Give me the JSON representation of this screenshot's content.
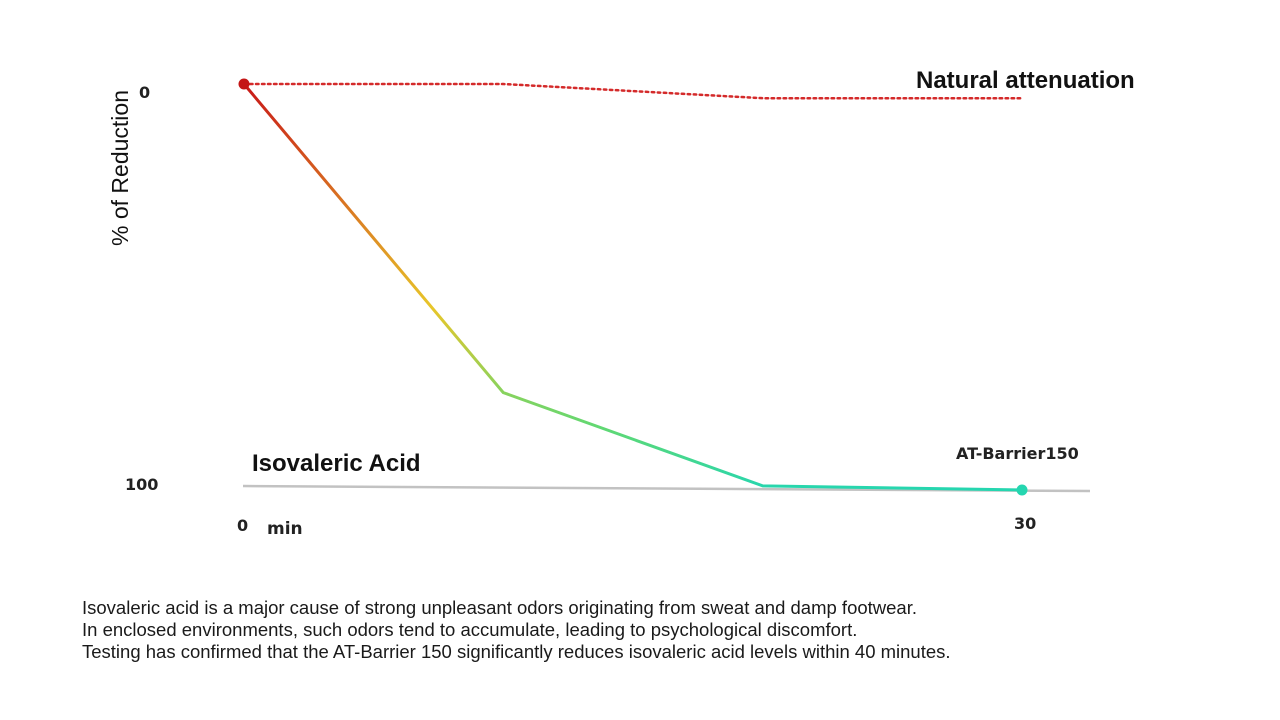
{
  "chart_data": {
    "type": "line",
    "title": "",
    "ylabel": "% of Reduction",
    "xlabel": "",
    "x_unit": "min",
    "x_ticks": [
      0,
      30
    ],
    "y_ticks": [
      0,
      100
    ],
    "xlim": [
      0,
      30
    ],
    "ylim": [
      0,
      100
    ],
    "y_inverted": true,
    "baseline_label": "Isovaleric Acid",
    "grid": false,
    "series": [
      {
        "name": "Natural attenuation",
        "style": "dotted",
        "color": "#d42a2a",
        "x": [
          0,
          10,
          20,
          30
        ],
        "y": [
          0,
          0,
          3.5,
          3.5
        ]
      },
      {
        "name": "AT-Barrier150",
        "style": "gradient",
        "color_start": "#c81818",
        "color_mid": "#e8c62a",
        "color_end": "#25d6b0",
        "x": [
          0,
          10,
          20,
          30
        ],
        "y": [
          0,
          76,
          99,
          100
        ]
      }
    ]
  },
  "caption": {
    "lines": [
      "Isovaleric acid is a major cause of strong unpleasant odors originating from sweat and damp footwear.",
      "In enclosed environments, such odors tend to accumulate, leading to psychological discomfort.",
      "Testing has confirmed that the AT-Barrier 150 significantly reduces isovaleric acid levels within 40 minutes."
    ]
  }
}
